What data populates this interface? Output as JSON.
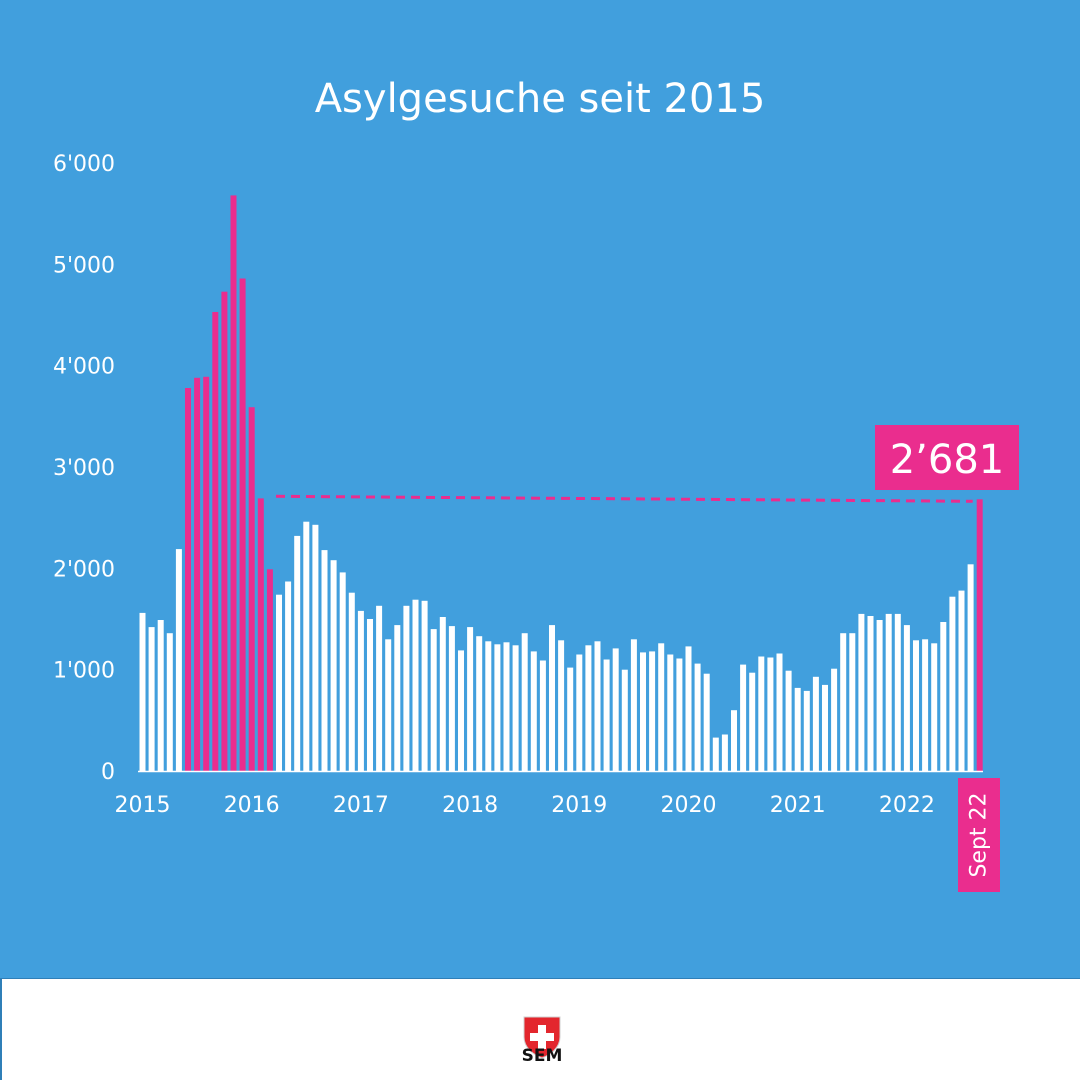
{
  "colors": {
    "background": "#419fdd",
    "bar": "#ffffff",
    "highlight": "#ea2d8e",
    "text": "#ffffff"
  },
  "brand": {
    "name": "SEM",
    "icon": "swiss-shield-icon"
  },
  "chart_data": {
    "type": "bar",
    "title": "Asylgesuche seit 2015",
    "ylim": [
      0,
      6000
    ],
    "yticks": [
      "0",
      "1'000",
      "2'000",
      "3'000",
      "4'000",
      "5'000",
      "6'000"
    ],
    "xticks": [
      "2015",
      "2016",
      "2017",
      "2018",
      "2019",
      "2020",
      "2021",
      "2022"
    ],
    "last_label": "Sept 22",
    "callout": "2’681",
    "reference_value": 2681,
    "highlight_ranges": [
      [
        5,
        14
      ],
      [
        92,
        92
      ]
    ],
    "values": [
      1560,
      1420,
      1490,
      1360,
      2190,
      3780,
      3880,
      3890,
      4530,
      4730,
      5680,
      4860,
      3590,
      2690,
      1990,
      1740,
      1870,
      2320,
      2460,
      2430,
      2180,
      2080,
      1960,
      1760,
      1580,
      1500,
      1630,
      1300,
      1440,
      1630,
      1690,
      1680,
      1400,
      1520,
      1430,
      1190,
      1420,
      1330,
      1280,
      1250,
      1270,
      1240,
      1360,
      1180,
      1090,
      1440,
      1290,
      1020,
      1150,
      1240,
      1280,
      1100,
      1210,
      1000,
      1300,
      1170,
      1180,
      1260,
      1150,
      1110,
      1230,
      1060,
      960,
      330,
      360,
      600,
      1050,
      970,
      1130,
      1120,
      1160,
      990,
      820,
      790,
      930,
      850,
      1010,
      1360,
      1360,
      1550,
      1530,
      1490,
      1550,
      1550,
      1440,
      1290,
      1300,
      1260,
      1470,
      1720,
      1780,
      2040,
      2681
    ]
  }
}
